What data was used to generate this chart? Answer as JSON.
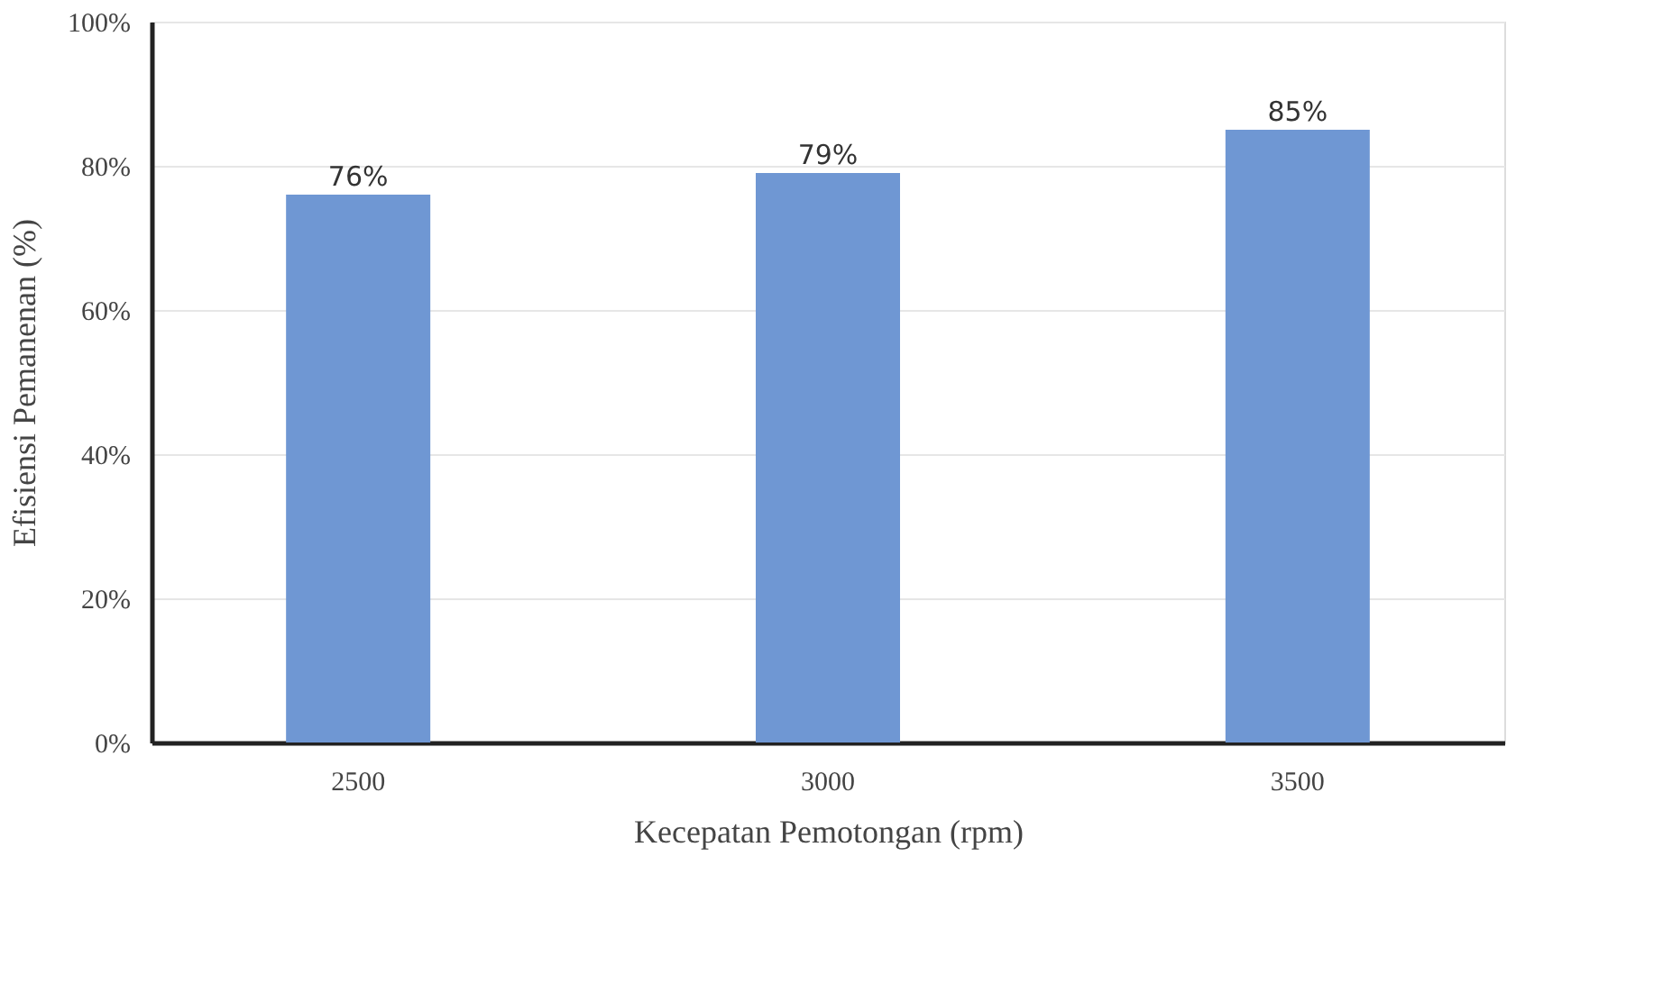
{
  "chart_data": {
    "type": "bar",
    "xlabel": "Kecepatan Pemotongan (rpm)",
    "ylabel": "Efisiensi Pemanenan (%)",
    "categories": [
      "2500",
      "3000",
      "3500"
    ],
    "values": [
      76,
      79,
      85
    ],
    "color": "#6f97d3",
    "value_labels": [
      "76%",
      "79%",
      "85%"
    ],
    "ylim": [
      0,
      100
    ],
    "yticks": [
      {
        "value": 0,
        "label": "0%"
      },
      {
        "value": 20,
        "label": "20%"
      },
      {
        "value": 40,
        "label": "40%"
      },
      {
        "value": 60,
        "label": "60%"
      },
      {
        "value": 80,
        "label": "80%"
      },
      {
        "value": 100,
        "label": "100%"
      }
    ],
    "grid": "y"
  }
}
